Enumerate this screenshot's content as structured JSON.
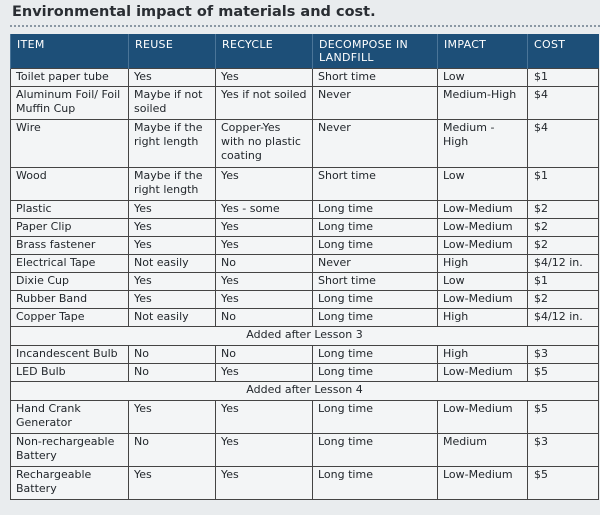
{
  "title": "Environmental impact of materials and cost.",
  "headers": [
    "ITEM",
    "REUSE",
    "RECYCLE",
    "DECOMPOSE IN LANDFILL",
    "IMPACT",
    "COST"
  ],
  "rows": [
    {
      "type": "row",
      "h": 1,
      "cells": [
        "Toilet paper tube",
        "Yes",
        "Yes",
        "Short time",
        "Low",
        "$1"
      ]
    },
    {
      "type": "row",
      "h": 2,
      "cells": [
        "Aluminum Foil/ Foil Muffin Cup",
        "Maybe if not soiled",
        "Yes if not soiled",
        "Never",
        "Medium-High",
        "$4"
      ]
    },
    {
      "type": "row",
      "h": 3,
      "cells": [
        "Wire",
        "Maybe if the right length",
        "Copper-Yes with no plastic coating",
        "Never",
        "Medium - High",
        "$4"
      ]
    },
    {
      "type": "row",
      "h": 2,
      "cells": [
        "Wood",
        "Maybe if the right length",
        "Yes",
        "Short time",
        "Low",
        "$1"
      ]
    },
    {
      "type": "row",
      "h": 1,
      "cells": [
        "Plastic",
        "Yes",
        "Yes - some",
        "Long time",
        "Low-Medium",
        "$2"
      ]
    },
    {
      "type": "row",
      "h": 1,
      "cells": [
        "Paper Clip",
        "Yes",
        "Yes",
        "Long time",
        "Low-Medium",
        "$2"
      ]
    },
    {
      "type": "row",
      "h": 1,
      "cells": [
        "Brass fastener",
        "Yes",
        "Yes",
        "Long time",
        "Low-Medium",
        "$2"
      ]
    },
    {
      "type": "row",
      "h": 1,
      "cells": [
        "Electrical Tape",
        "Not easily",
        "No",
        "Never",
        "High",
        "$4/12 in."
      ]
    },
    {
      "type": "row",
      "h": 1,
      "cells": [
        "Dixie Cup",
        "Yes",
        "Yes",
        "Short time",
        "Low",
        "$1"
      ]
    },
    {
      "type": "row",
      "h": 1,
      "cells": [
        "Rubber Band",
        "Yes",
        "Yes",
        "Long time",
        "Low-Medium",
        "$2"
      ]
    },
    {
      "type": "row",
      "h": 1,
      "cells": [
        "Copper Tape",
        "Not easily",
        "No",
        "Long time",
        "High",
        "$4/12 in."
      ]
    },
    {
      "type": "section",
      "label": "Added after Lesson 3"
    },
    {
      "type": "row",
      "h": 1,
      "cells": [
        "Incandescent Bulb",
        "No",
        "No",
        "Long time",
        "High",
        "$3"
      ]
    },
    {
      "type": "row",
      "h": 1,
      "cells": [
        "LED Bulb",
        "No",
        "Yes",
        "Long time",
        "Low-Medium",
        "$5"
      ]
    },
    {
      "type": "section",
      "label": "Added after Lesson 4"
    },
    {
      "type": "row",
      "h": 2,
      "cells": [
        "Hand Crank Generator",
        "Yes",
        "Yes",
        "Long time",
        "Low-Medium",
        "$5"
      ]
    },
    {
      "type": "row",
      "h": 2,
      "cells": [
        "Non-rechargeable Battery",
        "No",
        "Yes",
        "Long time",
        "Medium",
        "$3"
      ]
    },
    {
      "type": "row",
      "h": 2,
      "cells": [
        "Rechargeable Battery",
        "Yes",
        "Yes",
        "Long time",
        "Low-Medium",
        "$5"
      ]
    }
  ]
}
